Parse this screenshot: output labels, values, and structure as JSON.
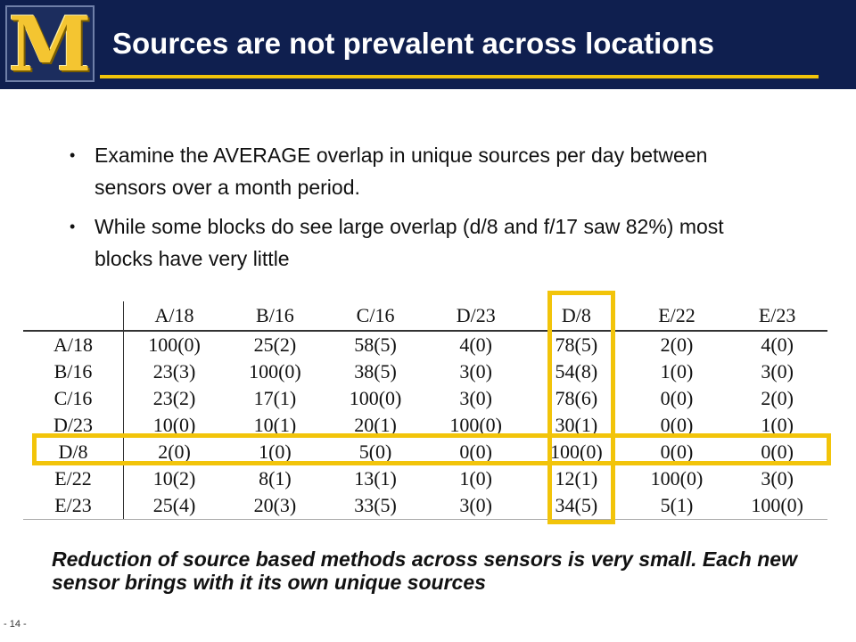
{
  "header": {
    "title": "Sources are not prevalent across locations",
    "logo_letter": "M",
    "colors": {
      "background": "#0f1f4f",
      "accent": "#f2c40a",
      "title_text": "#ffffff"
    }
  },
  "bullets": [
    "Examine the AVERAGE overlap in unique sources per day between sensors over a month period.",
    "While some blocks do see large overlap  (d/8 and f/17 saw 82%) most blocks have very little"
  ],
  "table": {
    "columns": [
      "A/18",
      "B/16",
      "C/16",
      "D/23",
      "D/8",
      "E/22",
      "E/23"
    ],
    "rows": [
      {
        "label": "A/18",
        "cells": [
          "100(0)",
          "25(2)",
          "58(5)",
          "4(0)",
          "78(5)",
          "2(0)",
          "4(0)"
        ]
      },
      {
        "label": "B/16",
        "cells": [
          "23(3)",
          "100(0)",
          "38(5)",
          "3(0)",
          "54(8)",
          "1(0)",
          "3(0)"
        ]
      },
      {
        "label": "C/16",
        "cells": [
          "23(2)",
          "17(1)",
          "100(0)",
          "3(0)",
          "78(6)",
          "0(0)",
          "2(0)"
        ]
      },
      {
        "label": "D/23",
        "cells": [
          "10(0)",
          "10(1)",
          "20(1)",
          "100(0)",
          "30(1)",
          "0(0)",
          "1(0)"
        ]
      },
      {
        "label": "D/8",
        "cells": [
          "2(0)",
          "1(0)",
          "5(0)",
          "0(0)",
          "100(0)",
          "0(0)",
          "0(0)"
        ]
      },
      {
        "label": "E/22",
        "cells": [
          "10(2)",
          "8(1)",
          "13(1)",
          "1(0)",
          "12(1)",
          "100(0)",
          "3(0)"
        ]
      },
      {
        "label": "E/23",
        "cells": [
          "25(4)",
          "20(3)",
          "33(5)",
          "3(0)",
          "34(5)",
          "5(1)",
          "100(0)"
        ]
      }
    ],
    "highlight_color": "#f2c40a"
  },
  "conclusion": "Reduction of source based methods across sensors is very small. Each new sensor brings with it its own unique sources",
  "slide_number": "- 14 -"
}
